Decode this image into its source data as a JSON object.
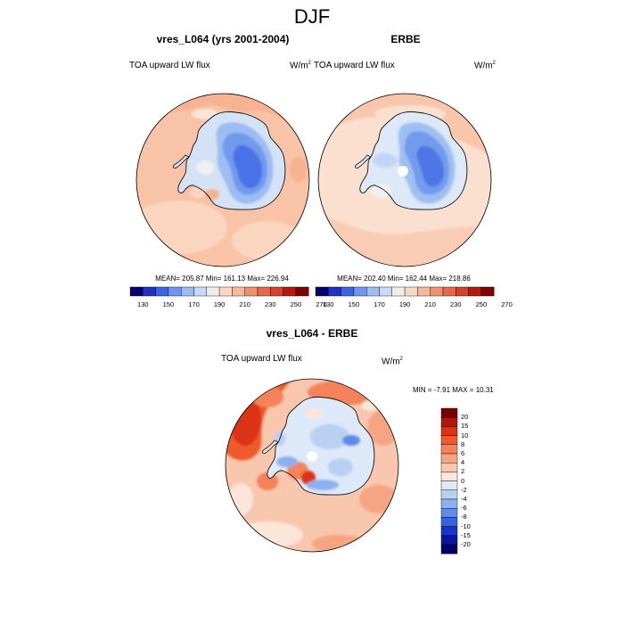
{
  "figure": {
    "title": "DJF"
  },
  "panels": {
    "model": {
      "title": "vres_L064 (yrs 2001-2004)",
      "variable": "TOA upward LW flux",
      "units": "W/m",
      "units_exp": "2",
      "stats": "MEAN= 205.87  Min= 161.13  Max= 226.94"
    },
    "obs": {
      "title": "ERBE",
      "variable": "TOA upward LW flux",
      "units": "W/m",
      "units_exp": "2",
      "stats": "MEAN= 202.40  Min= 162.44  Max= 218.86"
    },
    "diff": {
      "title": "vres_L064 - ERBE",
      "variable": "TOA upward LW flux",
      "units": "W/m",
      "units_exp": "2",
      "stats": "MIN =  -7.91 MAX =  10.31"
    }
  },
  "abs_colorbar": {
    "labels": [
      "130",
      "150",
      "170",
      "190",
      "210",
      "230",
      "250",
      "270"
    ],
    "colors": [
      "#08006e",
      "#1f31c6",
      "#3d62e6",
      "#6f95ee",
      "#9ebcf2",
      "#c7dbf6",
      "#f0ede9",
      "#fad9c3",
      "#f6b89a",
      "#ef9071",
      "#e6674a",
      "#d7402a",
      "#b81810",
      "#7e0000"
    ]
  },
  "diff_colorbar": {
    "labels": [
      "20",
      "15",
      "10",
      "8",
      "6",
      "4",
      "2",
      "0",
      "-2",
      "-4",
      "-6",
      "-8",
      "-10",
      "-15",
      "-20"
    ],
    "colors": [
      "#7a0000",
      "#b3150a",
      "#dc3112",
      "#ee5a2a",
      "#f4825a",
      "#f6a582",
      "#f9c6ae",
      "#fce6da",
      "#dde8f8",
      "#b9d0f3",
      "#8db1ef",
      "#5f8ce9",
      "#3562e1",
      "#1a33c8",
      "#0a14a0",
      "#020064"
    ]
  }
}
